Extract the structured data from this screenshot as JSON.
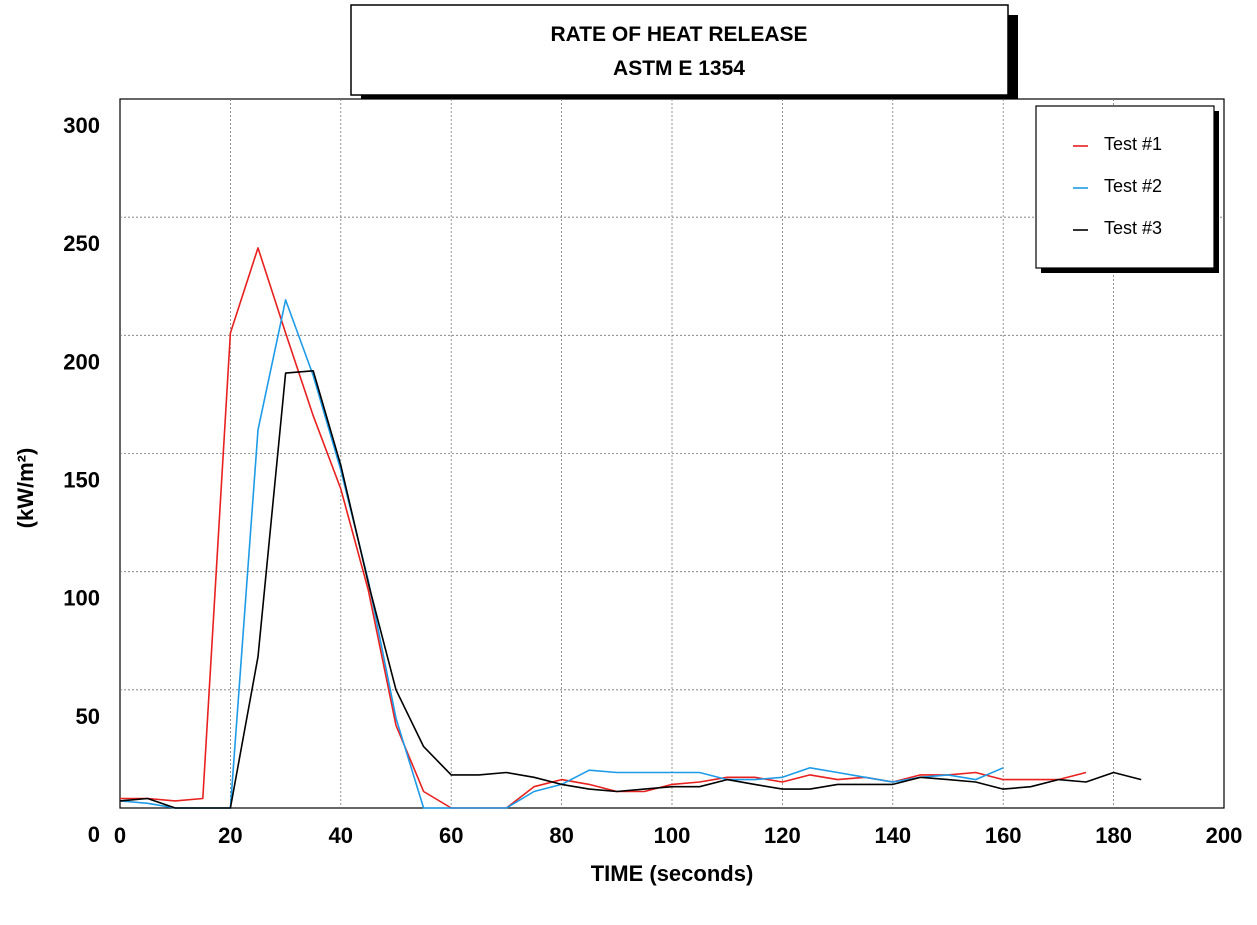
{
  "chart_data": {
    "type": "line",
    "title_line1": "RATE OF HEAT RELEASE",
    "title_line2": "ASTM E 1354",
    "xlabel": "TIME (seconds)",
    "ylabel": "(kW/m²)",
    "xlim": [
      0,
      200
    ],
    "ylim": [
      0,
      300
    ],
    "xticks": [
      0,
      20,
      40,
      60,
      80,
      100,
      120,
      140,
      160,
      180,
      200
    ],
    "yticks": [
      0,
      50,
      100,
      150,
      200,
      250,
      300
    ],
    "grid": true,
    "legend_position": "top-right",
    "series": [
      {
        "name": "Test #1",
        "color": "#e8201e",
        "x": [
          0,
          5,
          10,
          15,
          20,
          25,
          30,
          35,
          40,
          45,
          50,
          55,
          60,
          65,
          70,
          75,
          80,
          85,
          90,
          95,
          100,
          105,
          110,
          115,
          120,
          125,
          130,
          135,
          140,
          145,
          150,
          155,
          160,
          165,
          170,
          175
        ],
        "y": [
          4,
          4,
          3,
          4,
          201,
          237,
          201,
          166,
          135,
          92,
          35,
          7,
          0,
          0,
          0,
          9,
          12,
          10,
          7,
          7,
          10,
          11,
          13,
          13,
          11,
          14,
          12,
          13,
          11,
          14,
          14,
          15,
          12,
          12,
          12,
          15
        ]
      },
      {
        "name": "Test #2",
        "color": "#1e9be8",
        "x": [
          0,
          5,
          10,
          15,
          20,
          25,
          30,
          35,
          40,
          45,
          50,
          55,
          60,
          65,
          70,
          75,
          80,
          85,
          90,
          95,
          100,
          105,
          110,
          115,
          120,
          125,
          130,
          135,
          140,
          145,
          150,
          155,
          160
        ],
        "y": [
          3,
          2,
          0,
          0,
          0,
          160,
          215,
          183,
          143,
          96,
          38,
          0,
          0,
          0,
          0,
          7,
          10,
          16,
          15,
          15,
          15,
          15,
          12,
          12,
          13,
          17,
          15,
          13,
          11,
          13,
          14,
          12,
          17
        ]
      },
      {
        "name": "Test #3",
        "color": "#000000",
        "x": [
          0,
          5,
          10,
          15,
          20,
          25,
          30,
          35,
          40,
          45,
          50,
          55,
          60,
          65,
          70,
          75,
          80,
          85,
          90,
          95,
          100,
          105,
          110,
          115,
          120,
          125,
          130,
          135,
          140,
          145,
          150,
          155,
          160,
          165,
          170,
          175,
          180,
          185
        ],
        "y": [
          3,
          4,
          0,
          0,
          0,
          64,
          184,
          185,
          145,
          95,
          50,
          26,
          14,
          14,
          15,
          13,
          10,
          8,
          7,
          8,
          9,
          9,
          12,
          10,
          8,
          8,
          10,
          10,
          10,
          13,
          12,
          11,
          8,
          9,
          12,
          11,
          15,
          12
        ]
      }
    ]
  },
  "colors": {
    "grid": "#777777",
    "frame": "#000000",
    "shadow": "#000000",
    "background": "#ffffff"
  }
}
